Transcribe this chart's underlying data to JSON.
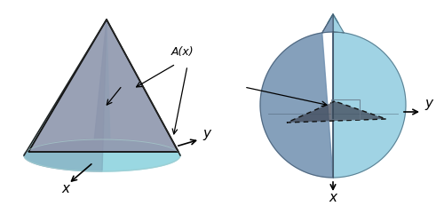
{
  "fig_width": 5.0,
  "fig_height": 2.5,
  "dpi": 100,
  "bg_color": "#ffffff",
  "cone_cyan_light": "#a8e0e8",
  "cone_cyan_right": "#88d0dc",
  "cone_left_dark": "#8090a8",
  "cone_face_gray": "#9090a8",
  "tri_dark": "#505868",
  "sphere_left_dark": "#7090b0",
  "sphere_right_light": "#90cce0",
  "sphere_top_teal": "#60a0b8",
  "tri2_dark": "#404858",
  "axis_label_x": "x",
  "axis_label_y": "y",
  "label_Ax": "A(x)"
}
